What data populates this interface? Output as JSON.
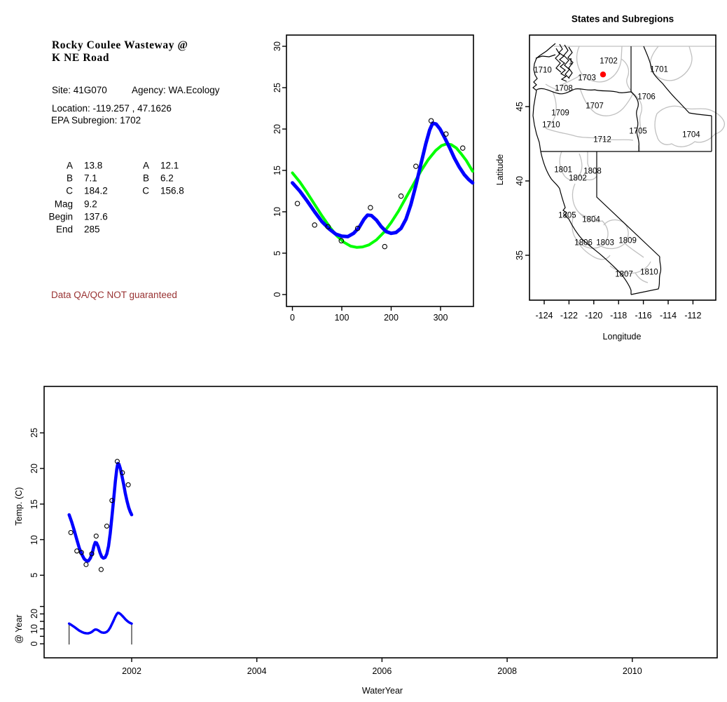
{
  "info_panel": {
    "title_line1": "Rocky Coulee Wasteway @",
    "title_line2": "K NE Road",
    "site": "Site: 41G070",
    "agency": "Agency: WA.Ecology",
    "location": "Location: -119.257 , 47.1626",
    "epa_subregion": "EPA Subregion: 1702",
    "params_left": [
      {
        "label": "A",
        "value": "13.8"
      },
      {
        "label": "B",
        "value": "7.1"
      },
      {
        "label": "C",
        "value": "184.2"
      },
      {
        "label": "Mag",
        "value": "9.2"
      },
      {
        "label": "Begin",
        "value": "137.6"
      },
      {
        "label": "End",
        "value": "285"
      }
    ],
    "params_right": [
      {
        "label": "A",
        "value": "12.1"
      },
      {
        "label": "B",
        "value": "6.2"
      },
      {
        "label": "C",
        "value": "156.8"
      }
    ],
    "warning": "Data QA/QC NOT guaranteed",
    "warning_color": "#993333"
  },
  "chart_data": [
    {
      "id": "seasonal_fit",
      "type": "scatter",
      "title": "",
      "xlabel": "",
      "ylabel": "",
      "xticks": [
        0,
        100,
        200,
        300
      ],
      "yticks": [
        0,
        5,
        10,
        15,
        20,
        25,
        30
      ],
      "xlim": [
        -12,
        367
      ],
      "ylim": [
        -1.4,
        31.4
      ],
      "points": {
        "marker": "open-circle",
        "x": [
          10,
          45,
          72,
          99,
          132,
          158,
          187,
          220,
          250,
          281,
          311,
          345
        ],
        "y": [
          11.0,
          8.4,
          8.2,
          6.5,
          8.0,
          10.5,
          5.8,
          11.9,
          15.5,
          21.0,
          19.4,
          17.7
        ]
      },
      "series": [
        {
          "name": "sine_fit",
          "color": "#00FF00",
          "x": [
            0,
            15,
            30,
            45,
            60,
            75,
            90,
            105,
            118,
            130,
            142,
            155,
            170,
            185,
            200,
            215,
            230,
            245,
            260,
            275,
            290,
            302,
            312,
            322,
            332,
            342,
            352,
            365
          ],
          "y": [
            14.7,
            13.6,
            12.3,
            10.9,
            9.5,
            8.2,
            7.1,
            6.3,
            5.85,
            5.7,
            5.75,
            6.0,
            6.6,
            7.5,
            8.7,
            10.1,
            11.7,
            13.3,
            14.9,
            16.3,
            17.4,
            18.0,
            18.2,
            18.1,
            17.7,
            17.0,
            16.2,
            14.9
          ]
        },
        {
          "name": "smooth_fit",
          "color": "#0000FF",
          "x": [
            0,
            15,
            30,
            45,
            60,
            75,
            88,
            100,
            112,
            124,
            135,
            145,
            152,
            160,
            170,
            180,
            190,
            200,
            210,
            220,
            230,
            240,
            250,
            260,
            270,
            278,
            284,
            291,
            299,
            308,
            318,
            328,
            338,
            348,
            357,
            365
          ],
          "y": [
            13.5,
            12.5,
            11.3,
            10.0,
            8.8,
            7.9,
            7.3,
            7.05,
            7.0,
            7.4,
            8.1,
            9.1,
            9.6,
            9.55,
            9.0,
            8.2,
            7.6,
            7.4,
            7.5,
            8.0,
            9.1,
            10.9,
            13.2,
            15.7,
            18.2,
            19.9,
            20.7,
            20.6,
            20.0,
            19.0,
            17.8,
            16.5,
            15.4,
            14.5,
            13.9,
            13.5
          ]
        }
      ]
    },
    {
      "id": "map",
      "type": "map",
      "title": "States and Subregions",
      "xlabel": "Longitude",
      "ylabel": "Latitude",
      "xticks": [
        -124,
        -122,
        -120,
        -118,
        -116,
        -114,
        -112
      ],
      "yticks": [
        35,
        40,
        45
      ],
      "site_marker": {
        "lon": -119.257,
        "lat": 47.1626,
        "color": "#FF0000"
      },
      "subregion_labels": [
        {
          "text": "1702",
          "lon": -118.8,
          "lat": 48.02
        },
        {
          "text": "1701",
          "lon": -114.73,
          "lat": 47.45
        },
        {
          "text": "1",
          "lon": -121.85,
          "lat": 47.97
        },
        {
          "text": "1710",
          "lon": -124.11,
          "lat": 47.41
        },
        {
          "text": "1703",
          "lon": -120.55,
          "lat": 46.89
        },
        {
          "text": "1708",
          "lon": -122.42,
          "lat": 46.18
        },
        {
          "text": "1706",
          "lon": -115.75,
          "lat": 45.61
        },
        {
          "text": "1707",
          "lon": -119.93,
          "lat": 45.0
        },
        {
          "text": "1709",
          "lon": -122.7,
          "lat": 44.53
        },
        {
          "text": "1710",
          "lon": -123.44,
          "lat": 43.73
        },
        {
          "text": "1705",
          "lon": -116.43,
          "lat": 43.3
        },
        {
          "text": "1704",
          "lon": -112.14,
          "lat": 43.07
        },
        {
          "text": "1712",
          "lon": -119.31,
          "lat": 42.74
        },
        {
          "text": "1801",
          "lon": -122.47,
          "lat": 40.71
        },
        {
          "text": "1808",
          "lon": -120.1,
          "lat": 40.61
        },
        {
          "text": "1802",
          "lon": -121.29,
          "lat": 40.14
        },
        {
          "text": "1805",
          "lon": -122.14,
          "lat": 37.64
        },
        {
          "text": "1804",
          "lon": -120.21,
          "lat": 37.36
        },
        {
          "text": "1806",
          "lon": -120.83,
          "lat": 35.8
        },
        {
          "text": "1803",
          "lon": -119.08,
          "lat": 35.8
        },
        {
          "text": "1809",
          "lon": -117.27,
          "lat": 35.94
        },
        {
          "text": "1807",
          "lon": -117.56,
          "lat": 33.68
        },
        {
          "text": "1810",
          "lon": -115.53,
          "lat": 33.82
        }
      ]
    },
    {
      "id": "water_year_series",
      "type": "line",
      "title": "",
      "xlabel": "WaterYear",
      "ylabel": "Temp. (C)",
      "ylabel2": "@ Year",
      "xticks": [
        2002,
        2004,
        2006,
        2008,
        2010
      ],
      "yticks": [
        5,
        10,
        15,
        20,
        25
      ],
      "yticks2": [
        0,
        10,
        20
      ],
      "yticks2_minor": [
        5,
        15,
        25
      ],
      "xlim": [
        2000.6,
        2011.4
      ],
      "series_source": "seasonal_fit",
      "curve_year_span": [
        2001.0,
        2002.0
      ]
    }
  ]
}
